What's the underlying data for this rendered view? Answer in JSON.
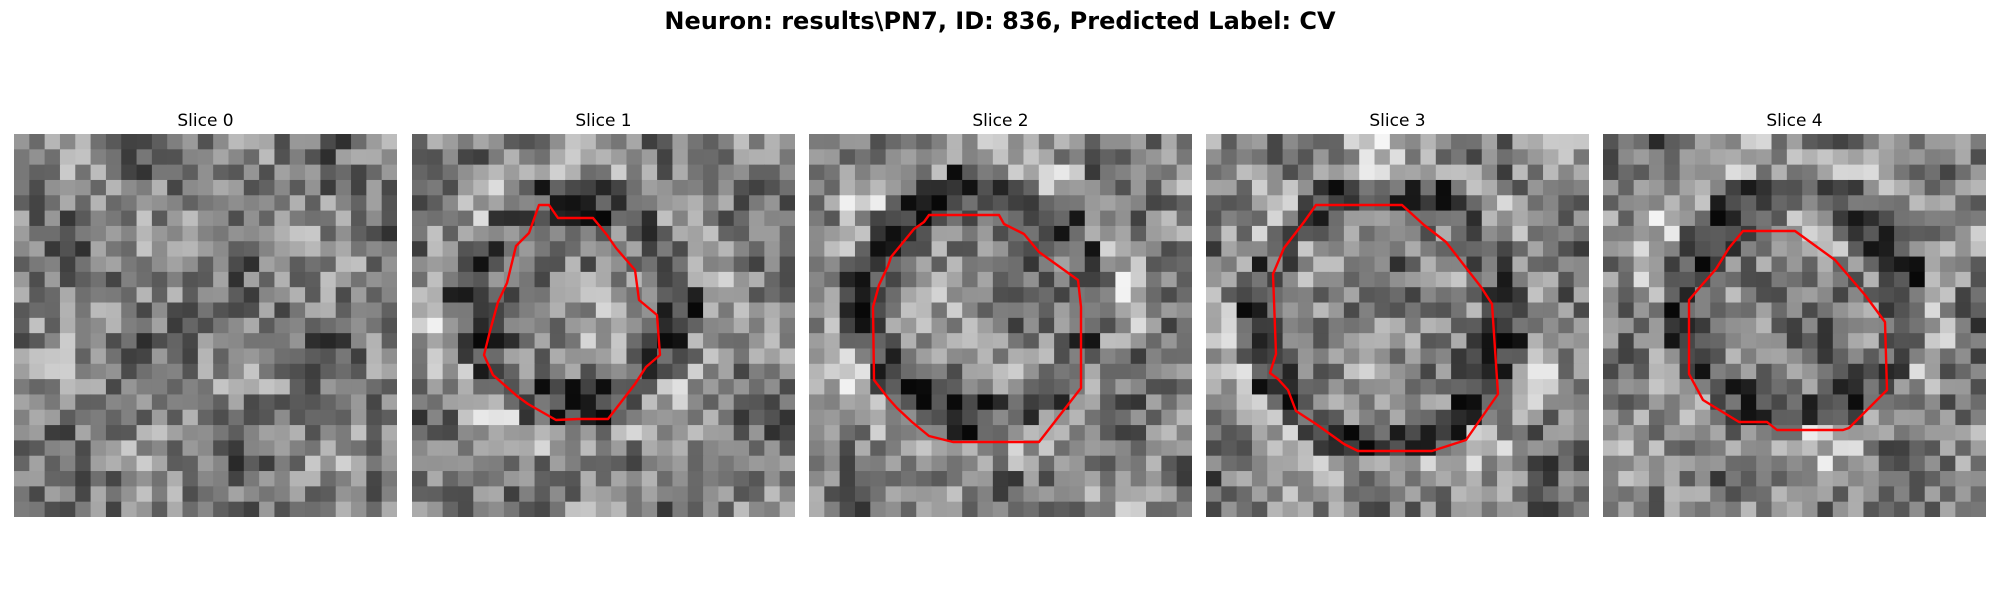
{
  "figure": {
    "title": "Neuron: results\\PN7, ID: 836, Predicted Label: CV"
  },
  "panels": [
    {
      "title": "Slice 0",
      "has_contour": false
    },
    {
      "title": "Slice 1",
      "has_contour": true
    },
    {
      "title": "Slice 2",
      "has_contour": true
    },
    {
      "title": "Slice 3",
      "has_contour": true
    },
    {
      "title": "Slice 4",
      "has_contour": true
    }
  ],
  "colors": {
    "contour": "#ff0000",
    "background": "#ffffff"
  }
}
